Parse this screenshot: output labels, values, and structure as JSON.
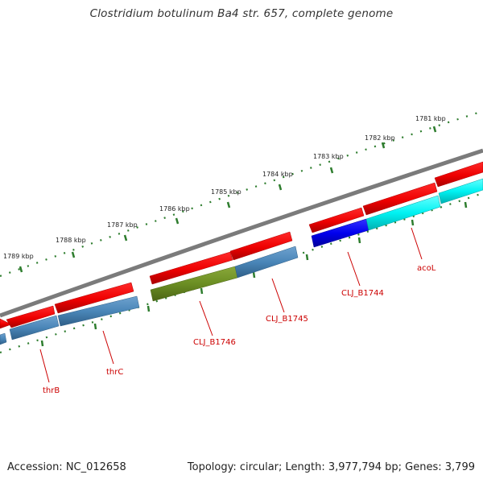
{
  "header": {
    "title": "Clostridium botulinum Ba4 str. 657, complete genome"
  },
  "footer": {
    "accession": "Accession: NC_012658",
    "summary": "Topology: circular; Length: 3,977,794 bp; Genes: 3,799"
  },
  "colors": {
    "backbone": "#7b7b7b",
    "tick": "#2e7d2e",
    "cds_top": "#ff0000",
    "gene_default": "#4682b4",
    "gene_olive": "#6b8e23",
    "gene_blue": "#0000ff",
    "gene_cyan": "#00ffff",
    "label_text": "#cc0000"
  },
  "scale_labels": [
    "1781 kbp",
    "1782 kbp",
    "1783 kbp",
    "1784 kbp",
    "1785 kbp",
    "1786 kbp",
    "1787 kbp",
    "1788 kbp",
    "1789 kbp"
  ],
  "gene_labels": [
    "thrB",
    "thrC",
    "CLJ_B1746",
    "CLJ_B1745",
    "CLJ_B1744",
    "acoL"
  ]
}
